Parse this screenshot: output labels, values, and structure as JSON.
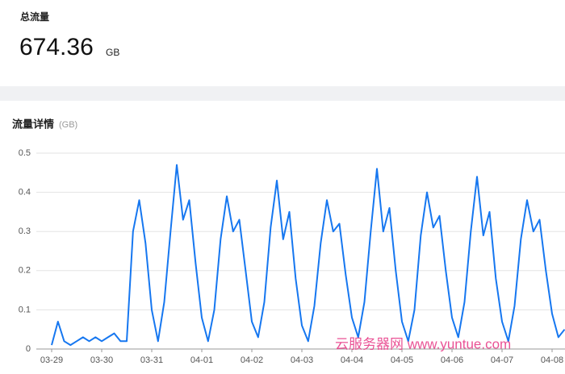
{
  "header": {
    "title": "总流量",
    "value": "674.36",
    "unit": "GB"
  },
  "watermark": "云服务器网 www.yuntue.com",
  "chart_data": {
    "type": "line",
    "title": "流量详情",
    "ylabel": "(GB)",
    "categories": [
      "03-29",
      null,
      null,
      null,
      null,
      null,
      null,
      null,
      "03-30",
      null,
      null,
      null,
      null,
      null,
      null,
      null,
      "03-31",
      null,
      null,
      null,
      null,
      null,
      null,
      null,
      "04-01",
      null,
      null,
      null,
      null,
      null,
      null,
      null,
      "04-02",
      null,
      null,
      null,
      null,
      null,
      null,
      null,
      "04-03",
      null,
      null,
      null,
      null,
      null,
      null,
      null,
      "04-04",
      null,
      null,
      null,
      null,
      null,
      null,
      null,
      "04-05",
      null,
      null,
      null,
      null,
      null,
      null,
      null,
      "04-06",
      null,
      null,
      null,
      null,
      null,
      null,
      null,
      "04-07",
      null,
      null,
      null,
      null,
      null,
      null,
      null,
      "04-08",
      null,
      null
    ],
    "series": [
      {
        "name": "流量",
        "color": "#1677f0",
        "values": [
          0.01,
          0.07,
          0.02,
          0.01,
          0.02,
          0.03,
          0.02,
          0.03,
          0.02,
          0.03,
          0.04,
          0.02,
          0.02,
          0.3,
          0.38,
          0.27,
          0.1,
          0.02,
          0.12,
          0.3,
          0.47,
          0.33,
          0.38,
          0.22,
          0.08,
          0.02,
          0.1,
          0.28,
          0.39,
          0.3,
          0.33,
          0.2,
          0.07,
          0.03,
          0.12,
          0.31,
          0.43,
          0.28,
          0.35,
          0.18,
          0.06,
          0.02,
          0.11,
          0.27,
          0.38,
          0.3,
          0.32,
          0.19,
          0.08,
          0.03,
          0.12,
          0.3,
          0.46,
          0.3,
          0.36,
          0.2,
          0.07,
          0.02,
          0.1,
          0.29,
          0.4,
          0.31,
          0.34,
          0.2,
          0.08,
          0.03,
          0.12,
          0.3,
          0.44,
          0.29,
          0.35,
          0.18,
          0.07,
          0.02,
          0.11,
          0.28,
          0.38,
          0.3,
          0.33,
          0.2,
          0.09,
          0.03,
          0.05
        ]
      }
    ],
    "ylim": [
      0,
      0.5
    ],
    "yticks": [
      0,
      0.1,
      0.2,
      0.3,
      0.4,
      0.5
    ],
    "grid": true
  }
}
